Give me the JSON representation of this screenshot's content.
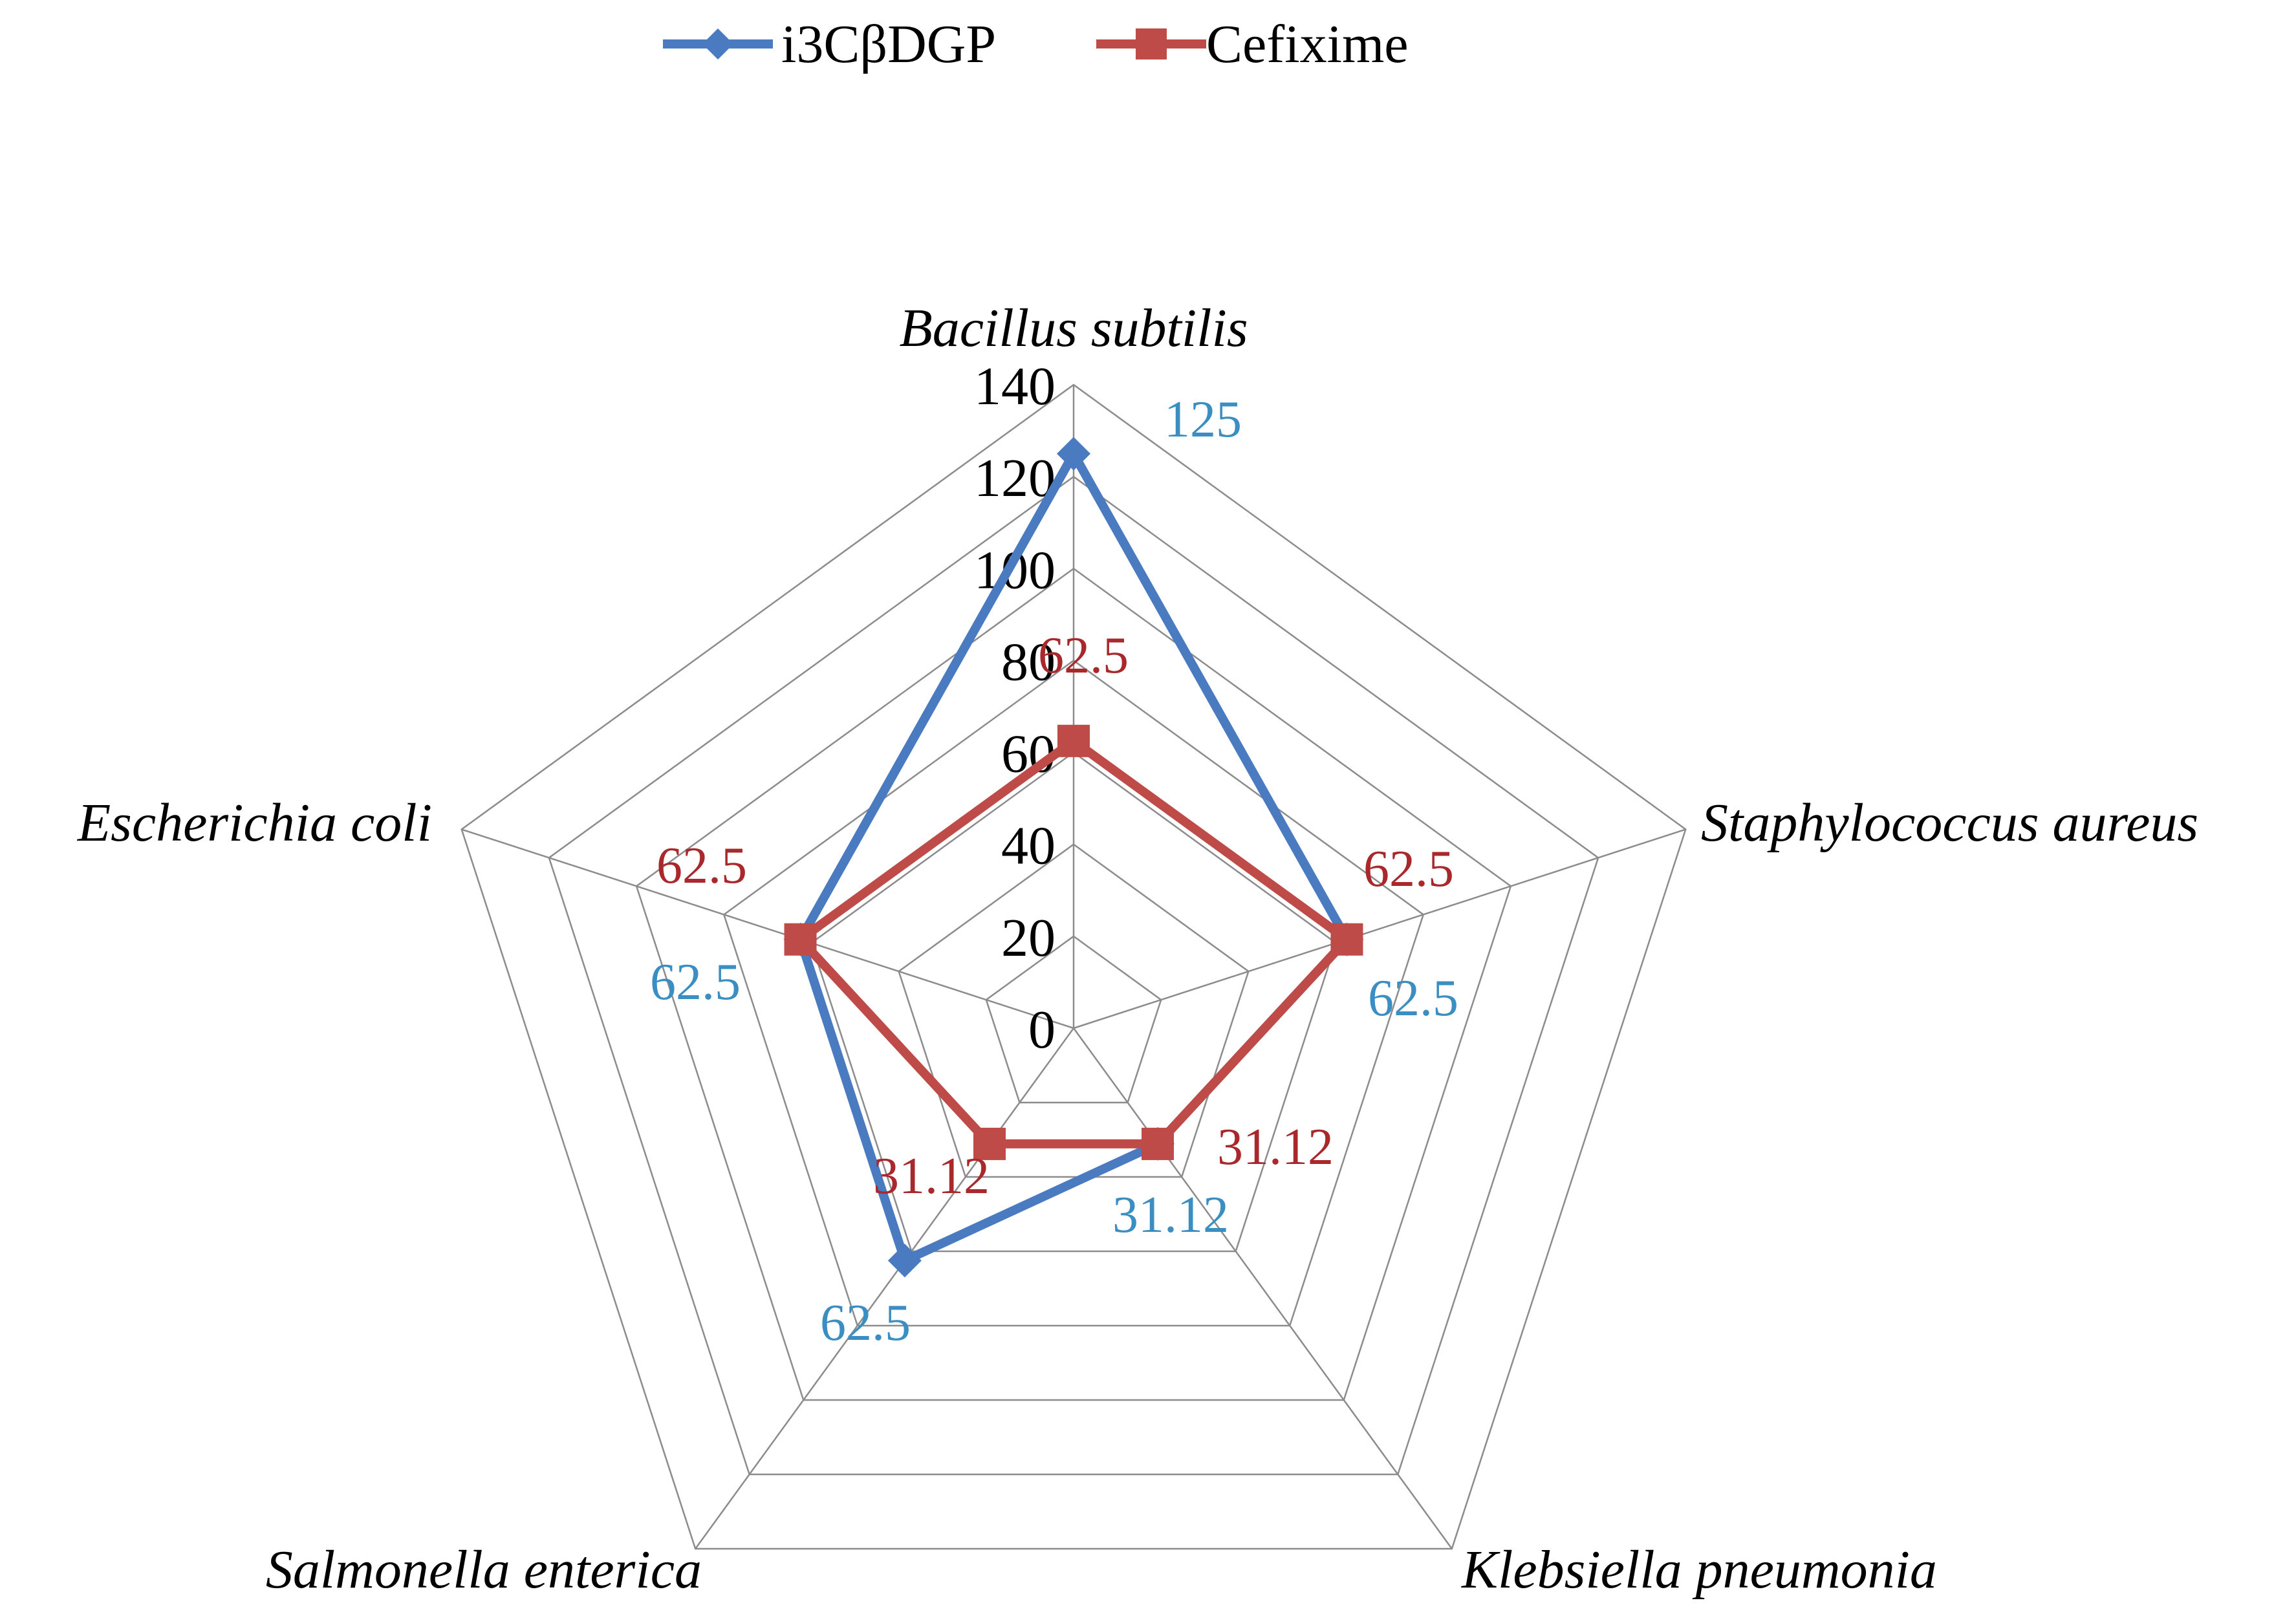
{
  "chart_data": {
    "type": "radar",
    "categories": [
      "Bacillus subtilis",
      "Staphylococcus aureus",
      "Klebsiella pneumonia",
      "Salmonella enterica",
      "Escherichia coli"
    ],
    "radial_range": [
      0,
      140
    ],
    "radial_ticks": [
      "0",
      "20",
      "40",
      "60",
      "80",
      "100",
      "120",
      "140"
    ],
    "grid": true,
    "legend_position": "top",
    "series": [
      {
        "name": "i3CβDGP",
        "color": "#4A7BC1",
        "marker": "diamond",
        "values": [
          125,
          62.5,
          31.12,
          62.5,
          62.5
        ],
        "data_labels": [
          "125",
          "62.5",
          "31.12",
          "62.5",
          "62.5"
        ],
        "label_color": "#3A8EC2"
      },
      {
        "name": "Cefixime",
        "color": "#BE4B48",
        "marker": "square",
        "values": [
          62.5,
          62.5,
          31.12,
          31.12,
          62.5
        ],
        "data_labels": [
          "62.5",
          "62.5",
          "31.12",
          "31.12",
          "62.5"
        ],
        "label_color": "#A8282C"
      }
    ]
  }
}
